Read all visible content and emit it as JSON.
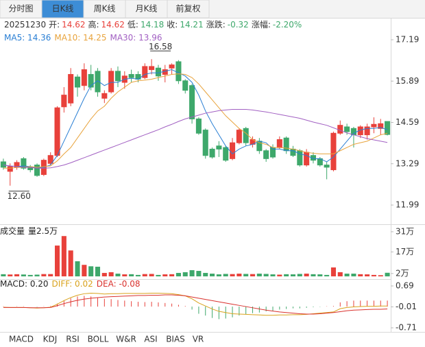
{
  "tabs": [
    {
      "label": "分时图"
    },
    {
      "label": "日K线",
      "active": true
    },
    {
      "label": "周K线"
    },
    {
      "label": "月K线"
    },
    {
      "label": "前复权"
    }
  ],
  "quote": {
    "date": "20251230",
    "items": [
      {
        "label": "开:",
        "value": "14.62",
        "color": "#e8413b"
      },
      {
        "label": "高:",
        "value": "14.62",
        "color": "#e8413b"
      },
      {
        "label": "低:",
        "value": "14.18",
        "color": "#3ea86b"
      },
      {
        "label": "收:",
        "value": "14.21",
        "color": "#3ea86b"
      },
      {
        "label": "涨跌:",
        "value": "-0.32",
        "color": "#3ea86b"
      },
      {
        "label": "涨幅:",
        "value": "-2.20%",
        "color": "#3ea86b"
      }
    ]
  },
  "chart_data": [
    {
      "type": "candlestick",
      "up_color": "#e8413b",
      "down_color": "#3ea86b",
      "ylim": [
        11.99,
        17.19
      ],
      "yticks": [
        17.19,
        15.89,
        14.59,
        13.29,
        11.99
      ],
      "ohlc": {
        "open": [
          13.35,
          13.05,
          13.18,
          13.45,
          13.18,
          13.25,
          12.95,
          13.3,
          13.55,
          15.08,
          15.2,
          16.02,
          15.75,
          16.1,
          16.2,
          15.35,
          15.55,
          16.2,
          15.85,
          16.1,
          16.1,
          16.0,
          16.25,
          16.3,
          16.1,
          16.3,
          16.5,
          15.9,
          15.75,
          14.7,
          14.35,
          13.75,
          13.85,
          13.8,
          13.45,
          13.95,
          14.4,
          13.9,
          14.0,
          13.7,
          13.8,
          13.8,
          14.1,
          13.75,
          13.7,
          13.25,
          13.55,
          13.45,
          13.25,
          13.1,
          14.25,
          14.45,
          14.4,
          14.2,
          14.2,
          14.45,
          14.4,
          14.62
        ],
        "high": [
          13.45,
          13.3,
          13.4,
          13.5,
          13.25,
          13.3,
          13.45,
          13.65,
          15.1,
          15.7,
          16.3,
          16.1,
          16.45,
          16.4,
          16.3,
          15.6,
          16.3,
          16.35,
          16.2,
          16.25,
          16.2,
          16.45,
          16.58,
          16.4,
          16.4,
          16.45,
          16.55,
          15.95,
          15.8,
          14.75,
          14.4,
          13.8,
          14.0,
          13.85,
          14.1,
          14.4,
          14.45,
          14.15,
          14.1,
          13.75,
          13.9,
          14.15,
          14.15,
          13.85,
          13.75,
          13.75,
          13.65,
          13.5,
          13.35,
          14.3,
          14.65,
          14.55,
          14.45,
          14.5,
          14.55,
          14.75,
          14.7,
          14.62
        ],
        "low": [
          13.1,
          12.6,
          13.1,
          13.1,
          13.02,
          12.88,
          12.9,
          13.25,
          13.5,
          14.9,
          15.1,
          15.4,
          15.6,
          15.6,
          15.4,
          15.2,
          15.5,
          15.7,
          15.65,
          15.85,
          15.85,
          15.95,
          16.1,
          15.9,
          15.85,
          16.1,
          15.8,
          15.5,
          14.55,
          14.2,
          13.45,
          13.45,
          13.5,
          13.35,
          13.4,
          13.9,
          13.85,
          13.8,
          13.6,
          13.35,
          13.45,
          13.75,
          13.6,
          13.5,
          13.2,
          13.2,
          13.3,
          13.2,
          12.8,
          13.05,
          14.2,
          14.2,
          13.8,
          14.1,
          14.05,
          14.25,
          14.2,
          14.18
        ],
        "close": [
          13.18,
          13.2,
          13.33,
          13.15,
          13.1,
          12.92,
          13.4,
          13.55,
          15.05,
          15.45,
          16.1,
          15.7,
          16.25,
          15.7,
          15.55,
          15.5,
          16.2,
          15.9,
          16.05,
          16.0,
          15.95,
          16.35,
          16.35,
          16.05,
          16.25,
          16.4,
          15.9,
          15.6,
          14.7,
          14.25,
          13.55,
          13.5,
          13.75,
          13.4,
          13.95,
          14.35,
          13.95,
          14.05,
          13.7,
          13.45,
          13.5,
          14.05,
          13.7,
          13.55,
          13.25,
          13.65,
          13.4,
          13.25,
          13.18,
          14.25,
          14.5,
          14.3,
          14.2,
          14.45,
          14.45,
          14.53,
          14.55,
          14.21
        ]
      },
      "series": [
        {
          "label": "MA5: 14.36",
          "color": "#2a7fd4",
          "values": [
            13.25,
            13.22,
            13.2,
            13.22,
            13.2,
            13.15,
            13.18,
            13.25,
            13.55,
            14.0,
            14.45,
            14.9,
            15.35,
            15.75,
            15.9,
            15.75,
            15.85,
            15.85,
            15.95,
            15.98,
            15.95,
            16.1,
            16.15,
            16.15,
            16.2,
            16.25,
            16.15,
            16.05,
            15.85,
            15.45,
            14.95,
            14.55,
            14.2,
            13.85,
            13.6,
            13.75,
            13.85,
            13.9,
            14.0,
            13.95,
            13.75,
            13.75,
            13.7,
            13.7,
            13.6,
            13.55,
            13.45,
            13.45,
            13.35,
            13.5,
            13.75,
            14.0,
            14.25,
            14.35,
            14.4,
            14.4,
            14.43,
            14.36
          ]
        },
        {
          "label": "MA10: 14.25",
          "color": "#e8a33c",
          "values": [
            13.15,
            13.15,
            13.17,
            13.18,
            13.2,
            13.18,
            13.2,
            13.22,
            13.38,
            13.6,
            13.8,
            14.1,
            14.4,
            14.7,
            14.95,
            15.1,
            15.35,
            15.55,
            15.7,
            15.85,
            15.9,
            15.92,
            15.95,
            16.0,
            16.05,
            16.1,
            16.12,
            16.1,
            16.0,
            15.8,
            15.55,
            15.3,
            15.05,
            14.8,
            14.6,
            14.4,
            14.25,
            14.05,
            13.95,
            13.9,
            13.8,
            13.8,
            13.78,
            13.75,
            13.7,
            13.65,
            13.62,
            13.6,
            13.6,
            13.6,
            13.7,
            13.8,
            13.9,
            13.95,
            14.0,
            14.1,
            14.2,
            14.25
          ]
        },
        {
          "label": "MA30: 13.96",
          "color": "#a15fc2",
          "values": [
            13.25,
            13.22,
            13.2,
            13.18,
            13.17,
            13.15,
            13.15,
            13.16,
            13.2,
            13.25,
            13.32,
            13.4,
            13.48,
            13.56,
            13.64,
            13.72,
            13.8,
            13.88,
            13.96,
            14.04,
            14.12,
            14.2,
            14.28,
            14.36,
            14.45,
            14.53,
            14.62,
            14.7,
            14.76,
            14.82,
            14.88,
            14.92,
            14.96,
            14.98,
            15.0,
            15.0,
            15.0,
            14.98,
            14.95,
            14.92,
            14.88,
            14.84,
            14.8,
            14.76,
            14.72,
            14.66,
            14.6,
            14.55,
            14.5,
            14.42,
            14.34,
            14.26,
            14.2,
            14.14,
            14.08,
            14.04,
            14.0,
            13.96
          ]
        }
      ],
      "annotations": [
        {
          "value": 16.58,
          "label": "16.58"
        },
        {
          "value": 12.6,
          "label": "12.60"
        }
      ]
    },
    {
      "type": "bar",
      "title": "成交量",
      "subtitle": "量2.5万",
      "ylim": [
        0,
        34.3
      ],
      "yticks": [
        {
          "value": 31,
          "label": "31万"
        },
        {
          "value": 17,
          "label": "17万"
        },
        {
          "value": 2,
          "label": "2万"
        }
      ],
      "values": [
        1.5,
        1.3,
        1.5,
        1.3,
        1.0,
        1.2,
        1.6,
        1.6,
        21.4,
        28,
        18,
        10.5,
        8,
        7,
        6.7,
        2.4,
        2.9,
        1.9,
        1.4,
        1.5,
        1.0,
        1.6,
        1.7,
        1.0,
        1.4,
        1.5,
        2.4,
        2.9,
        4.3,
        3.8,
        2.4,
        1.9,
        1.4,
        1.7,
        1.6,
        1.9,
        1.7,
        1.6,
        1.9,
        1.7,
        1.4,
        1.2,
        1.5,
        1.4,
        1.7,
        1.9,
        1.5,
        1.4,
        1.0,
        6.2,
        2.9,
        1.9,
        1.9,
        1.5,
        1.4,
        1.0,
        0.8,
        2.5
      ]
    },
    {
      "type": "macd",
      "label": "MACD: 0.20",
      "ylim": [
        -0.87,
        0.85
      ],
      "yticks": [
        0.69,
        -0.01,
        -0.71
      ],
      "values": [
        0.01,
        0.0,
        0.01,
        0.01,
        0.0,
        -0.01,
        0.01,
        0.02,
        0.1,
        0.2,
        0.28,
        0.34,
        0.36,
        0.34,
        0.3,
        0.26,
        0.25,
        0.22,
        0.2,
        0.18,
        0.16,
        0.15,
        0.16,
        0.14,
        0.12,
        0.1,
        0.06,
        0.02,
        -0.1,
        -0.24,
        -0.3,
        -0.38,
        -0.42,
        -0.4,
        -0.36,
        -0.3,
        -0.26,
        -0.22,
        -0.2,
        -0.16,
        -0.14,
        -0.1,
        -0.08,
        -0.06,
        -0.06,
        -0.04,
        -0.02,
        -0.01,
        0.01,
        0.02,
        0.14,
        0.18,
        0.2,
        0.2,
        0.2,
        0.2,
        0.2,
        0.2
      ],
      "series": [
        {
          "label": "DIFF: 0.02",
          "color": "#d9a21b",
          "values": [
            -0.02,
            -0.03,
            -0.03,
            -0.03,
            -0.04,
            -0.05,
            -0.04,
            -0.02,
            0.08,
            0.2,
            0.3,
            0.38,
            0.43,
            0.45,
            0.44,
            0.42,
            0.43,
            0.43,
            0.44,
            0.44,
            0.44,
            0.44,
            0.45,
            0.45,
            0.44,
            0.43,
            0.4,
            0.36,
            0.26,
            0.12,
            0.02,
            -0.08,
            -0.16,
            -0.2,
            -0.24,
            -0.25,
            -0.26,
            -0.27,
            -0.28,
            -0.29,
            -0.29,
            -0.28,
            -0.28,
            -0.27,
            -0.27,
            -0.26,
            -0.24,
            -0.22,
            -0.2,
            -0.18,
            -0.07,
            -0.03,
            -0.01,
            0.0,
            0.01,
            0.01,
            0.02,
            0.02
          ]
        },
        {
          "label": "DEA: -0.08",
          "color": "#d9302c",
          "values": [
            -0.03,
            -0.03,
            -0.03,
            -0.03,
            -0.04,
            -0.04,
            -0.04,
            -0.03,
            0.03,
            0.1,
            0.16,
            0.21,
            0.25,
            0.28,
            0.3,
            0.32,
            0.33,
            0.34,
            0.35,
            0.36,
            0.37,
            0.37,
            0.38,
            0.38,
            0.39,
            0.39,
            0.38,
            0.36,
            0.32,
            0.28,
            0.24,
            0.2,
            0.16,
            0.12,
            0.08,
            0.04,
            0.0,
            -0.04,
            -0.08,
            -0.12,
            -0.15,
            -0.18,
            -0.2,
            -0.22,
            -0.24,
            -0.25,
            -0.25,
            -0.24,
            -0.22,
            -0.2,
            -0.17,
            -0.14,
            -0.12,
            -0.11,
            -0.1,
            -0.09,
            -0.09,
            -0.08
          ]
        }
      ]
    }
  ],
  "indicator_tabs": [
    {
      "label": "MACD",
      "active": true
    },
    {
      "label": "KDJ"
    },
    {
      "label": "RSI"
    },
    {
      "label": "BOLL"
    },
    {
      "label": "W&R"
    },
    {
      "label": "ASI"
    },
    {
      "label": "BIAS"
    },
    {
      "label": "VR"
    }
  ]
}
